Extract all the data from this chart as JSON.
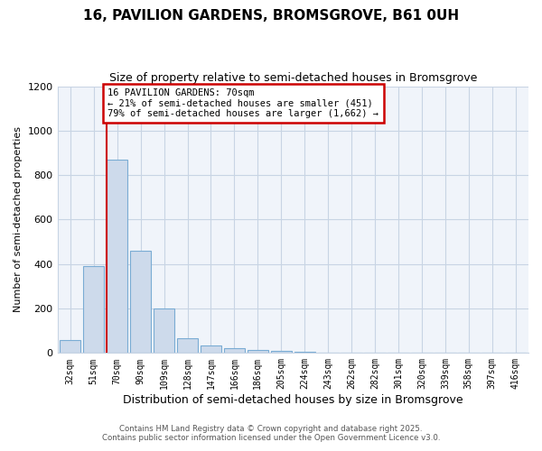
{
  "title": "16, PAVILION GARDENS, BROMSGROVE, B61 0UH",
  "subtitle": "Size of property relative to semi-detached houses in Bromsgrove",
  "xlabel": "Distribution of semi-detached houses by size in Bromsgrove",
  "ylabel": "Number of semi-detached properties",
  "categories": [
    "32sqm",
    "51sqm",
    "70sqm",
    "90sqm",
    "109sqm",
    "128sqm",
    "147sqm",
    "166sqm",
    "186sqm",
    "205sqm",
    "224sqm",
    "243sqm",
    "262sqm",
    "282sqm",
    "301sqm",
    "320sqm",
    "339sqm",
    "358sqm",
    "397sqm",
    "416sqm"
  ],
  "values": [
    60,
    390,
    870,
    460,
    200,
    65,
    35,
    20,
    12,
    8,
    5,
    3,
    2,
    1,
    1,
    0,
    0,
    0,
    0,
    0
  ],
  "bar_color": "#cddaeb",
  "bar_edge_color": "#7aacd4",
  "red_line_index": 2,
  "annotation_title": "16 PAVILION GARDENS: 70sqm",
  "annotation_line1": "← 21% of semi-detached houses are smaller (451)",
  "annotation_line2": "79% of semi-detached houses are larger (1,662) →",
  "annotation_box_color": "#ffffff",
  "annotation_box_edge": "#cc0000",
  "red_line_color": "#cc0000",
  "ylim": [
    0,
    1200
  ],
  "yticks": [
    0,
    200,
    400,
    600,
    800,
    1000,
    1200
  ],
  "footer1": "Contains HM Land Registry data © Crown copyright and database right 2025.",
  "footer2": "Contains public sector information licensed under the Open Government Licence v3.0.",
  "bg_color": "#ffffff",
  "plot_bg_color": "#f0f4fa",
  "grid_color": "#c8d4e4"
}
